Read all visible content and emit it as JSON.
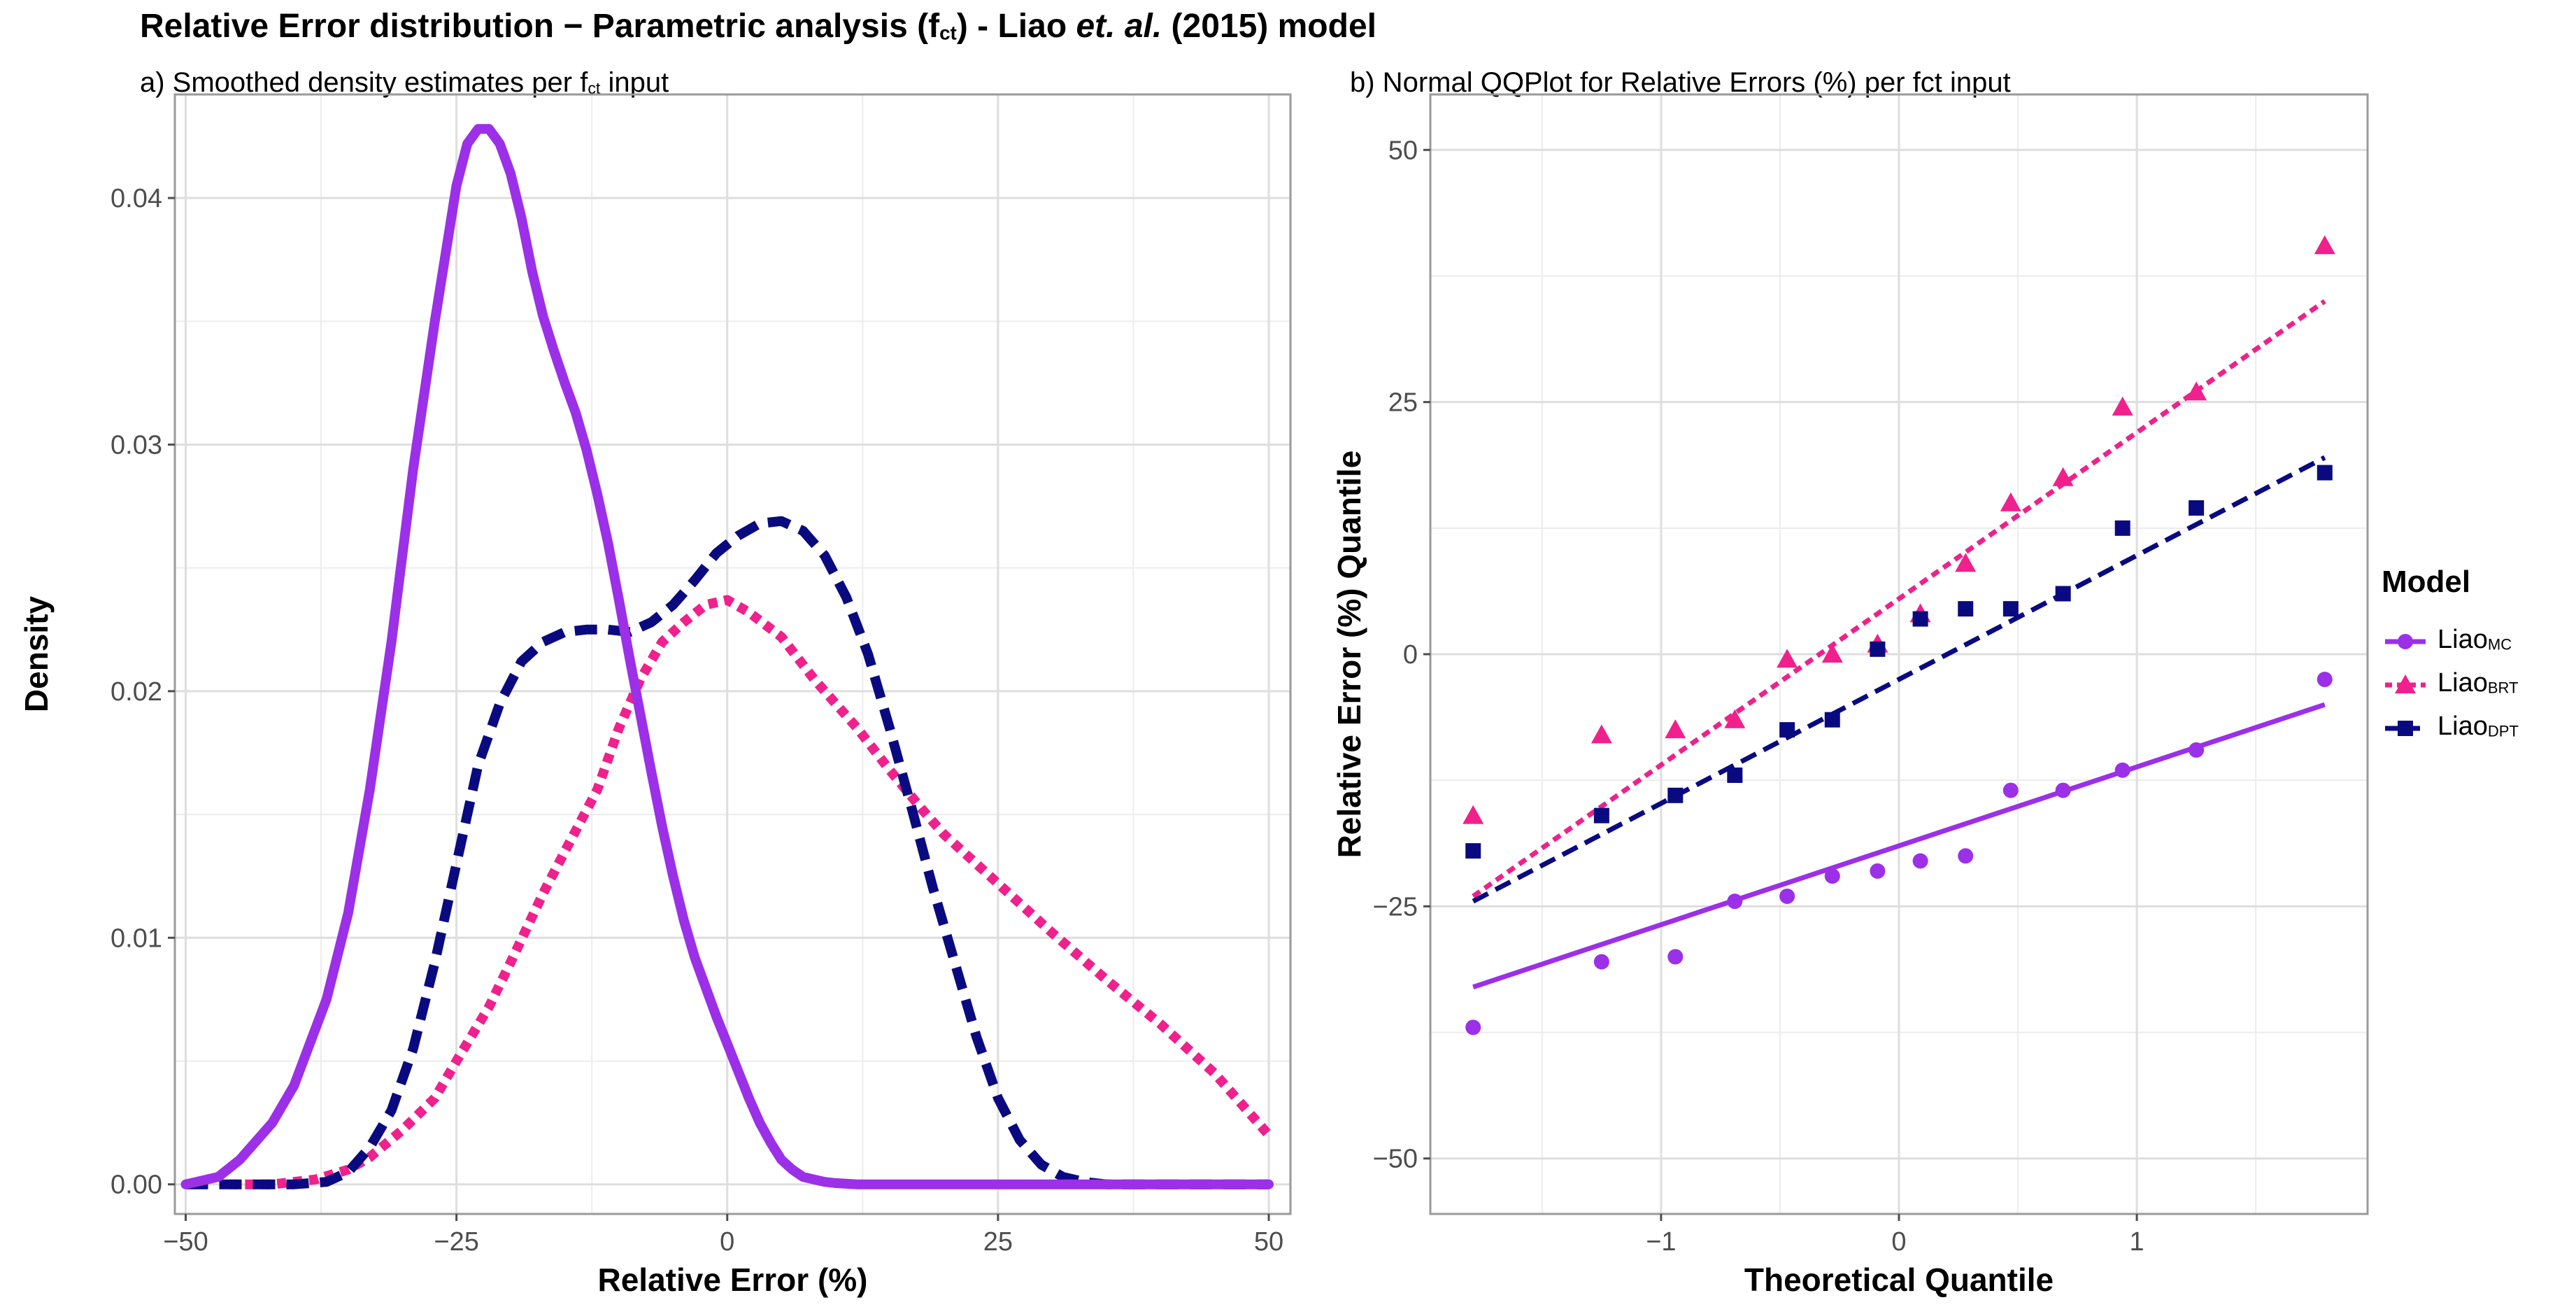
{
  "title": {
    "prefix": "Relative Error distribution − Parametric analysis (f",
    "prefix_sub": "ct",
    "mid": ") - Liao ",
    "italic": "et. al.",
    "suffix": " (2015) model"
  },
  "panel_a": {
    "subtitle_prefix": "a) Smoothed density estimates per f",
    "subtitle_sub": "ct",
    "subtitle_suffix": " input"
  },
  "panel_b": {
    "subtitle": "b)  Normal QQPlot for Relative Errors (%) per fct input"
  },
  "legend": {
    "title": "Model",
    "items": [
      {
        "base": "Liao",
        "sub": "MC",
        "color": "#9B30E8",
        "shape": "circle",
        "line": "solid"
      },
      {
        "base": "Liao",
        "sub": "BRT",
        "color": "#F0208C",
        "shape": "triangle",
        "line": "dotted"
      },
      {
        "base": "Liao",
        "sub": "DPT",
        "color": "#0A0A80",
        "shape": "square",
        "line": "dashed"
      }
    ]
  },
  "chart_data": [
    {
      "type": "line",
      "title": "a) Smoothed density estimates per fct input",
      "xlabel": "Relative Error (%)",
      "ylabel": "Density",
      "xlim": [
        -51,
        52
      ],
      "ylim": [
        -0.0012,
        0.0442
      ],
      "xticks": [
        -50,
        -25,
        0,
        25,
        50
      ],
      "xtick_labels": [
        "−50",
        "−25",
        "0",
        "25",
        "50"
      ],
      "yticks": [
        0,
        0.01,
        0.02,
        0.03,
        0.04
      ],
      "ytick_labels": [
        "0.00",
        "0.01",
        "0.02",
        "0.03",
        "0.04"
      ],
      "grid": true,
      "series": [
        {
          "name": "LiaoMC",
          "color": "#9B30E8",
          "dash": "solid",
          "x": [
            -50,
            -47,
            -45,
            -42,
            -40,
            -37,
            -35,
            -33,
            -31,
            -29,
            -27,
            -25,
            -24,
            -23,
            -22,
            -21,
            -20,
            -19,
            -18,
            -17,
            -16,
            -15,
            -14,
            -13,
            -12,
            -11,
            -10,
            -9,
            -8,
            -7,
            -6,
            -5,
            -4,
            -3,
            -2,
            -1,
            0,
            1,
            2,
            3,
            4,
            5,
            6,
            7,
            8,
            9,
            10,
            12,
            15,
            20,
            30,
            40,
            50
          ],
          "y": [
            0.0,
            0.0003,
            0.001,
            0.0025,
            0.004,
            0.0075,
            0.011,
            0.016,
            0.022,
            0.029,
            0.035,
            0.0405,
            0.0422,
            0.0428,
            0.0428,
            0.0422,
            0.041,
            0.0392,
            0.037,
            0.0352,
            0.0338,
            0.0325,
            0.0313,
            0.0298,
            0.028,
            0.026,
            0.0237,
            0.0213,
            0.019,
            0.0167,
            0.0145,
            0.0125,
            0.0107,
            0.0092,
            0.008,
            0.0068,
            0.0057,
            0.0046,
            0.0035,
            0.0025,
            0.0017,
            0.001,
            0.0006,
            0.0003,
            0.0002,
            0.0001,
            5e-05,
            0.0,
            0.0,
            0.0,
            0.0,
            0.0,
            0.0
          ]
        },
        {
          "name": "LiaoBRT",
          "color": "#F0208C",
          "dash": "dotted",
          "x": [
            -46,
            -42,
            -38,
            -35,
            -33,
            -30,
            -27,
            -25,
            -22,
            -20,
            -17,
            -15,
            -12,
            -10,
            -8,
            -6,
            -4,
            -2,
            0,
            2,
            5,
            8,
            10,
            12,
            15,
            18,
            20,
            25,
            30,
            35,
            40,
            45,
            50
          ],
          "y": [
            0.0,
            0.0,
            0.0002,
            0.0006,
            0.0011,
            0.0022,
            0.0035,
            0.005,
            0.0072,
            0.009,
            0.0118,
            0.0135,
            0.016,
            0.0185,
            0.0205,
            0.022,
            0.0228,
            0.0235,
            0.0237,
            0.0232,
            0.0222,
            0.0205,
            0.0195,
            0.0185,
            0.0168,
            0.0152,
            0.0142,
            0.0122,
            0.0102,
            0.0083,
            0.0065,
            0.0045,
            0.002
          ]
        },
        {
          "name": "LiaoDPT",
          "color": "#0A0A80",
          "dash": "dashed",
          "x": [
            -50,
            -45,
            -40,
            -37,
            -35,
            -33,
            -31,
            -29,
            -27,
            -25,
            -23,
            -21,
            -19,
            -17,
            -15,
            -13,
            -11,
            -9,
            -7,
            -5,
            -3,
            -1,
            1,
            3,
            5,
            7,
            9,
            11,
            13,
            15,
            17,
            19,
            21,
            23,
            25,
            27,
            29,
            31,
            33,
            35,
            37,
            40,
            45,
            50
          ],
          "y": [
            0.0,
            0.0,
            0.0,
            0.0001,
            0.0005,
            0.0015,
            0.003,
            0.0055,
            0.009,
            0.013,
            0.017,
            0.0195,
            0.0212,
            0.022,
            0.0224,
            0.0225,
            0.0225,
            0.0224,
            0.0228,
            0.0235,
            0.0245,
            0.0256,
            0.0263,
            0.0268,
            0.0269,
            0.0265,
            0.0255,
            0.0238,
            0.0215,
            0.0185,
            0.0153,
            0.012,
            0.009,
            0.006,
            0.0035,
            0.0018,
            0.0008,
            0.0003,
            0.0001,
            0.0,
            0.0,
            0.0,
            0.0,
            0.0
          ]
        }
      ]
    },
    {
      "type": "scatter",
      "title": "b) Normal QQPlot for Relative Errors (%) per fct input",
      "xlabel": "Theoretical Quantile",
      "ylabel": "Relative Error (%) Quantile",
      "xlim": [
        -1.97,
        1.97
      ],
      "ylim": [
        -55.5,
        55.5
      ],
      "xticks": [
        -1,
        0,
        1
      ],
      "xtick_labels": [
        "−1",
        "0",
        "1"
      ],
      "yticks": [
        -50,
        -25,
        0,
        25,
        50
      ],
      "ytick_labels": [
        "−50",
        "−25",
        "0",
        "25",
        "50"
      ],
      "grid": true,
      "x": [
        -1.79,
        -1.25,
        -0.94,
        -0.69,
        -0.47,
        -0.28,
        -0.09,
        0.09,
        0.28,
        0.47,
        0.69,
        0.94,
        1.25,
        1.79
      ],
      "series": [
        {
          "name": "LiaoMC",
          "color": "#9B30E8",
          "marker": "circle",
          "line_dash": "solid",
          "y": [
            -37,
            -30.5,
            -30,
            -24.5,
            -24,
            -22,
            -21.5,
            -20.5,
            -20,
            -13.5,
            -13.5,
            -11.5,
            -9.5,
            -2.5
          ],
          "fit": {
            "x": [
              -1.79,
              1.79
            ],
            "y": [
              -33,
              -5
            ]
          }
        },
        {
          "name": "LiaoBRT",
          "color": "#F0208C",
          "marker": "triangle",
          "line_dash": "dotted",
          "y": [
            -16,
            -8,
            -7.5,
            -6.5,
            -0.5,
            0,
            1,
            4,
            9,
            15,
            17.5,
            24.5,
            26,
            40.5
          ],
          "fit": {
            "x": [
              -1.79,
              1.79
            ],
            "y": [
              -24,
              35
            ]
          }
        },
        {
          "name": "LiaoDPT",
          "color": "#0A0A80",
          "marker": "square",
          "line_dash": "dashed",
          "y": [
            -19.5,
            -16,
            -14,
            -12,
            -7.5,
            -6.5,
            0.5,
            3.5,
            4.5,
            4.5,
            6,
            12.5,
            14.5,
            18
          ],
          "fit": {
            "x": [
              -1.79,
              1.79
            ],
            "y": [
              -24.5,
              19.5
            ]
          }
        }
      ]
    }
  ]
}
